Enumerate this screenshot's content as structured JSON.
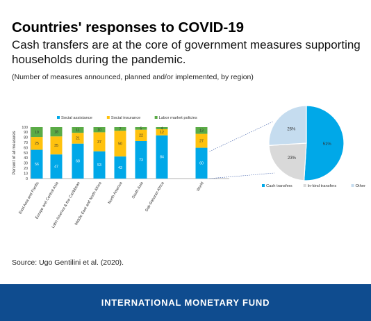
{
  "header": {
    "title": "Countries' responses to COVID-19",
    "subtitle": "Cash transfers are at the core of government measures supporting households during the pandemic.",
    "note": "(Number of measures announced, planned and/or implemented, by region)"
  },
  "chart_data": [
    {
      "type": "bar",
      "stacked": true,
      "ylabel": "Percent of all measures",
      "ylim": [
        0,
        100
      ],
      "yticks": [
        0,
        10,
        20,
        30,
        40,
        50,
        60,
        70,
        80,
        90,
        100
      ],
      "legend_position": "top",
      "categories": [
        "East Asia and Pacific",
        "Europe and Central Asia",
        "Latin America & the Caribbean",
        "Middle East and North Africa",
        "North America",
        "South Asia",
        "Sub-Saharan Africa",
        "World"
      ],
      "series": [
        {
          "name": "Social assistance",
          "color": "#00a8e8",
          "values": [
            56,
            47,
            68,
            53,
            43,
            73,
            84,
            60
          ]
        },
        {
          "name": "Social insurance",
          "color": "#ffc20e",
          "values": [
            25,
            35,
            21,
            37,
            50,
            22,
            12,
            27
          ]
        },
        {
          "name": "Labor market policies",
          "color": "#5aab46",
          "values": [
            19,
            18,
            11,
            10,
            7,
            5,
            4,
            13
          ]
        }
      ]
    },
    {
      "type": "pie",
      "legend_position": "bottom",
      "slices": [
        {
          "name": "Cash transfers",
          "value": 51,
          "label": "51%",
          "color": "#00a8e8"
        },
        {
          "name": "In-kind transfers",
          "value": 23,
          "label": "23%",
          "color": "#d9d9d9"
        },
        {
          "name": "Other",
          "value": 26,
          "label": "26%",
          "color": "#c5dcef"
        }
      ]
    }
  ],
  "source": "Source: Ugo Gentilini et al. (2020).",
  "footer": "INTERNATIONAL MONETARY FUND"
}
